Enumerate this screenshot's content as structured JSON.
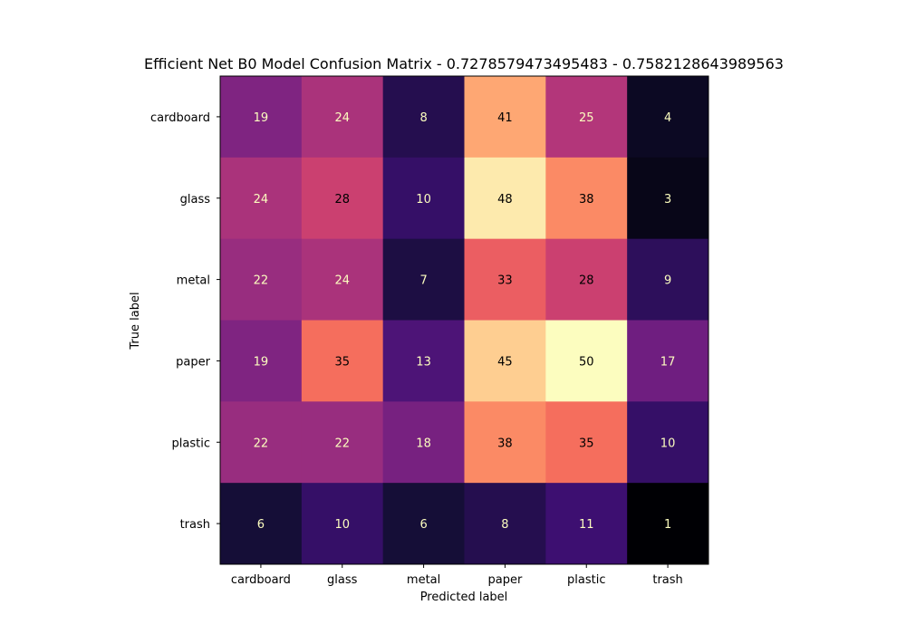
{
  "chart_data": {
    "type": "heatmap",
    "title": "Efficient Net B0 Model Confusion Matrix - 0.7278579473495483 - 0.7582128643989563",
    "xlabel": "Predicted label",
    "ylabel": "True label",
    "x_categories": [
      "cardboard",
      "glass",
      "metal",
      "paper",
      "plastic",
      "trash"
    ],
    "y_categories": [
      "cardboard",
      "glass",
      "metal",
      "paper",
      "plastic",
      "trash"
    ],
    "matrix": [
      [
        19,
        24,
        8,
        41,
        25,
        4
      ],
      [
        24,
        28,
        10,
        48,
        38,
        3
      ],
      [
        22,
        24,
        7,
        33,
        28,
        9
      ],
      [
        19,
        35,
        13,
        45,
        50,
        17
      ],
      [
        22,
        22,
        18,
        38,
        35,
        10
      ],
      [
        6,
        10,
        6,
        8,
        11,
        1
      ]
    ],
    "value_range": [
      1,
      50
    ],
    "colormap": "magma",
    "colorbar": false,
    "grid": false
  }
}
